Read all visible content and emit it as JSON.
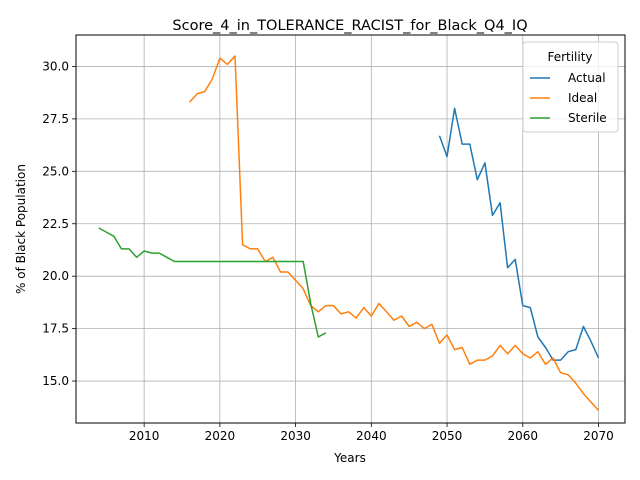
{
  "chart_data": {
    "type": "line",
    "title": "Score_4_in_TOLERANCE_RACIST_for_Black_Q4_IQ",
    "xlabel": "Years",
    "ylabel": "% of Black Population",
    "xlim": [
      2001,
      2073.5
    ],
    "ylim": [
      13.0,
      31.5
    ],
    "xticks": [
      2010,
      2020,
      2030,
      2040,
      2050,
      2060,
      2070
    ],
    "yticks": [
      15.0,
      17.5,
      20.0,
      22.5,
      25.0,
      27.5,
      30.0
    ],
    "grid": true,
    "legend": {
      "title": "Fertility",
      "position": "top-right"
    },
    "series": [
      {
        "name": "Actual",
        "color": "#1f77b4",
        "x": [
          2049,
          2050,
          2051,
          2052,
          2053,
          2054,
          2055,
          2056,
          2057,
          2058,
          2059,
          2060,
          2061,
          2062,
          2063,
          2064,
          2065,
          2066,
          2067,
          2068,
          2069,
          2070
        ],
        "y": [
          26.7,
          25.7,
          28.0,
          26.3,
          26.3,
          24.6,
          25.4,
          22.9,
          23.5,
          20.4,
          20.8,
          18.6,
          18.5,
          17.1,
          16.6,
          16.0,
          16.0,
          16.4,
          16.5,
          17.6,
          16.9,
          16.1
        ]
      },
      {
        "name": "Ideal",
        "color": "#ff7f0e",
        "x": [
          2016,
          2017,
          2018,
          2019,
          2020,
          2021,
          2022,
          2023,
          2024,
          2025,
          2026,
          2027,
          2028,
          2029,
          2030,
          2031,
          2032,
          2033,
          2034,
          2035,
          2036,
          2037,
          2038,
          2039,
          2040,
          2041,
          2042,
          2043,
          2044,
          2045,
          2046,
          2047,
          2048,
          2049,
          2050,
          2051,
          2052,
          2053,
          2054,
          2055,
          2056,
          2057,
          2058,
          2059,
          2060,
          2061,
          2062,
          2063,
          2064,
          2065,
          2066,
          2067,
          2068,
          2069,
          2070
        ],
        "y": [
          28.3,
          28.7,
          28.8,
          29.4,
          30.4,
          30.1,
          30.5,
          21.5,
          21.3,
          21.3,
          20.7,
          20.9,
          20.2,
          20.2,
          19.8,
          19.4,
          18.6,
          18.3,
          18.6,
          18.6,
          18.2,
          18.3,
          18.0,
          18.5,
          18.1,
          18.7,
          18.3,
          17.9,
          18.1,
          17.6,
          17.8,
          17.5,
          17.7,
          16.8,
          17.2,
          16.5,
          16.6,
          15.8,
          16.0,
          16.0,
          16.2,
          16.7,
          16.3,
          16.7,
          16.3,
          16.1,
          16.4,
          15.8,
          16.1,
          15.4,
          15.3,
          14.9,
          14.4,
          14.0,
          13.6
        ]
      },
      {
        "name": "Sterile",
        "color": "#2ca02c",
        "x": [
          2004,
          2005,
          2006,
          2007,
          2008,
          2009,
          2010,
          2011,
          2012,
          2013,
          2014,
          2015,
          2016,
          2017,
          2018,
          2019,
          2020,
          2021,
          2022,
          2023,
          2024,
          2025,
          2026,
          2027,
          2028,
          2029,
          2030,
          2031,
          2032,
          2033,
          2034
        ],
        "y": [
          22.3,
          22.1,
          21.9,
          21.3,
          21.3,
          20.9,
          21.2,
          21.1,
          21.1,
          20.9,
          20.7,
          20.7,
          20.7,
          20.7,
          20.7,
          20.7,
          20.7,
          20.7,
          20.7,
          20.7,
          20.7,
          20.7,
          20.7,
          20.7,
          20.7,
          20.7,
          20.7,
          20.7,
          18.7,
          17.1,
          17.3
        ]
      }
    ]
  }
}
